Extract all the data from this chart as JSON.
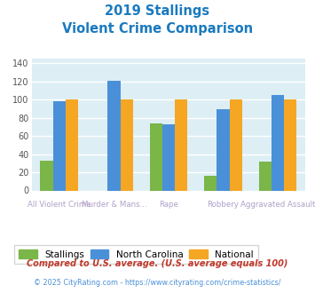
{
  "title_line1": "2019 Stallings",
  "title_line2": "Violent Crime Comparison",
  "title_color": "#1a7abf",
  "categories": [
    "All Violent Crime",
    "Murder & Mans...",
    "Rape",
    "Robbery",
    "Aggravated Assault"
  ],
  "cat_labels_row1": [
    "",
    "Murder & Mans...",
    "",
    "Robbery",
    ""
  ],
  "cat_labels_row2": [
    "All Violent Crime",
    "",
    "Rape",
    "",
    "Aggravated Assault"
  ],
  "stallings": [
    33,
    0,
    74,
    16,
    32
  ],
  "north_carolina": [
    98,
    121,
    73,
    89,
    105
  ],
  "national": [
    100,
    100,
    100,
    100,
    100
  ],
  "stallings_color": "#7ab648",
  "nc_color": "#4a90d9",
  "national_color": "#f5a623",
  "ylim": [
    0,
    145
  ],
  "yticks": [
    0,
    20,
    40,
    60,
    80,
    100,
    120,
    140
  ],
  "plot_bg": "#ddeef5",
  "grid_color": "#ffffff",
  "legend_labels": [
    "Stallings",
    "North Carolina",
    "National"
  ],
  "footnote1": "Compared to U.S. average. (U.S. average equals 100)",
  "footnote2": "© 2025 CityRating.com - https://www.cityrating.com/crime-statistics/",
  "footnote1_color": "#c0392b",
  "footnote2_color": "#4a90d9",
  "label_color": "#b0a0c8"
}
